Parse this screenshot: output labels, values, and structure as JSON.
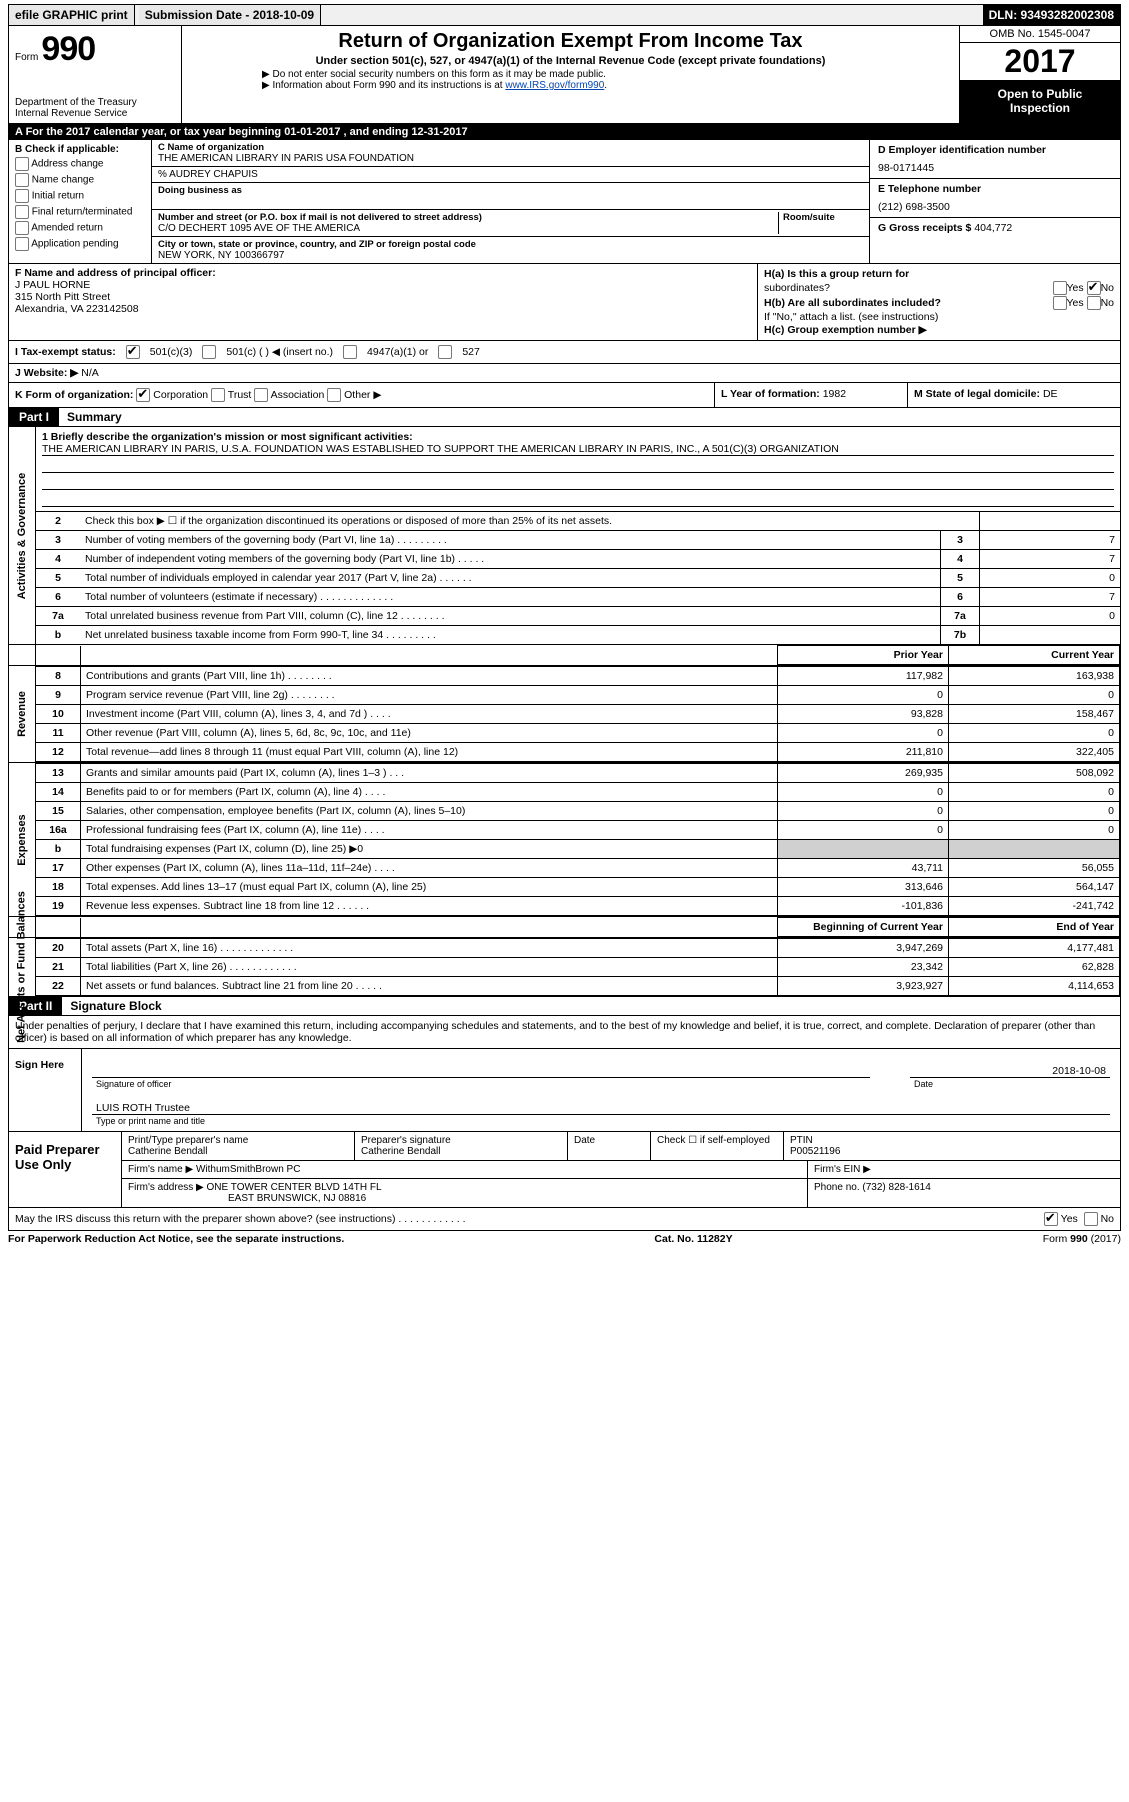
{
  "topbar": {
    "efile": "efile GRAPHIC print",
    "submission_label": "Submission Date - 2018-10-09",
    "dln_label": "DLN: 93493282002308"
  },
  "header": {
    "form_word": "Form",
    "form_number": "990",
    "dept1": "Department of the Treasury",
    "dept2": "Internal Revenue Service",
    "title": "Return of Organization Exempt From Income Tax",
    "subtitle": "Under section 501(c), 527, or 4947(a)(1) of the Internal Revenue Code (except private foundations)",
    "note1": "▶ Do not enter social security numbers on this form as it may be made public.",
    "note2_pre": "▶ Information about Form 990 and its instructions is at ",
    "note2_link": "www.IRS.gov/form990",
    "omb": "OMB No. 1545-0047",
    "year": "2017",
    "open1": "Open to Public",
    "open2": "Inspection"
  },
  "rowA": "A  For the 2017 calendar year, or tax year beginning 01-01-2017   , and ending 12-31-2017",
  "B": {
    "label": "B Check if applicable:",
    "items": [
      "Address change",
      "Name change",
      "Initial return",
      "Final return/terminated",
      "Amended return",
      "Application pending"
    ]
  },
  "C": {
    "name_label": "C Name of organization",
    "name": "THE AMERICAN LIBRARY IN PARIS USA FOUNDATION",
    "care_of": "% AUDREY CHAPUIS",
    "dba_label": "Doing business as",
    "addr_label": "Number and street (or P.O. box if mail is not delivered to street address)",
    "room_label": "Room/suite",
    "addr": "C/O DECHERT 1095 AVE OF THE AMERICA",
    "city_label": "City or town, state or province, country, and ZIP or foreign postal code",
    "city": "NEW YORK, NY  100366797"
  },
  "D": {
    "label": "D Employer identification number",
    "value": "98-0171445"
  },
  "E": {
    "label": "E Telephone number",
    "value": "(212) 698-3500"
  },
  "G": {
    "label": "G Gross receipts $",
    "value": "404,772"
  },
  "F": {
    "label": "F  Name and address of principal officer:",
    "name": "J PAUL HORNE",
    "street": "315 North Pitt Street",
    "city": "Alexandria, VA  223142508"
  },
  "H": {
    "a_label": "H(a)  Is this a group return for",
    "a_label2": "subordinates?",
    "b_label": "H(b)  Are all subordinates included?",
    "b_note": "If \"No,\" attach a list. (see instructions)",
    "c_label": "H(c)  Group exemption number ▶",
    "yes": "Yes",
    "no": "No"
  },
  "I": {
    "label": "I  Tax-exempt status:",
    "o1": "501(c)(3)",
    "o2": "501(c) (   ) ◀ (insert no.)",
    "o3": "4947(a)(1) or",
    "o4": "527"
  },
  "J": {
    "label": "J  Website: ▶",
    "value": "N/A"
  },
  "K": {
    "label": "K Form of organization:",
    "corp": "Corporation",
    "trust": "Trust",
    "assoc": "Association",
    "other": "Other ▶"
  },
  "L": {
    "label": "L Year of formation:",
    "value": "1982"
  },
  "M": {
    "label": "M State of legal domicile:",
    "value": "DE"
  },
  "partI": {
    "tag": "Part I",
    "title": "Summary"
  },
  "mission": {
    "lead": "1  Briefly describe the organization's mission or most significant activities:",
    "text": "THE AMERICAN LIBRARY IN PARIS, U.S.A. FOUNDATION WAS ESTABLISHED TO SUPPORT THE AMERICAN LIBRARY IN PARIS, INC., A 501(C)(3) ORGANIZATION"
  },
  "gov_side": "Activities & Governance",
  "sum_lines": [
    {
      "n": "2",
      "t": "Check this box ▶ ☐  if the organization discontinued its operations or disposed of more than 25% of its net assets.",
      "box": "",
      "v": ""
    },
    {
      "n": "3",
      "t": "Number of voting members of the governing body (Part VI, line 1a)  .   .   .   .   .   .   .   .   .",
      "box": "3",
      "v": "7"
    },
    {
      "n": "4",
      "t": "Number of independent voting members of the governing body (Part VI, line 1b)   .   .   .   .   .",
      "box": "4",
      "v": "7"
    },
    {
      "n": "5",
      "t": "Total number of individuals employed in calendar year 2017 (Part V, line 2a)   .   .   .   .   .   .",
      "box": "5",
      "v": "0"
    },
    {
      "n": "6",
      "t": "Total number of volunteers (estimate if necessary)   .   .   .   .   .   .   .   .   .   .   .   .   .",
      "box": "6",
      "v": "7"
    },
    {
      "n": "7a",
      "t": "Total unrelated business revenue from Part VIII, column (C), line 12   .   .   .   .   .   .   .   .",
      "box": "7a",
      "v": "0"
    },
    {
      "n": "b",
      "t": "Net unrelated business taxable income from Form 990-T, line 34   .   .   .   .   .   .   .   .   .",
      "box": "7b",
      "v": ""
    }
  ],
  "fin_header": {
    "prior": "Prior Year",
    "current": "Current Year",
    "begin": "Beginning of Current Year",
    "end": "End of Year"
  },
  "revenue_side": "Revenue",
  "revenue": [
    {
      "n": "8",
      "t": "Contributions and grants (Part VIII, line 1h)   .   .   .   .   .   .   .   .",
      "p": "117,982",
      "c": "163,938"
    },
    {
      "n": "9",
      "t": "Program service revenue (Part VIII, line 2g)   .   .   .   .   .   .   .   .",
      "p": "0",
      "c": "0"
    },
    {
      "n": "10",
      "t": "Investment income (Part VIII, column (A), lines 3, 4, and 7d )   .   .   .   .",
      "p": "93,828",
      "c": "158,467"
    },
    {
      "n": "11",
      "t": "Other revenue (Part VIII, column (A), lines 5, 6d, 8c, 9c, 10c, and 11e)",
      "p": "0",
      "c": "0"
    },
    {
      "n": "12",
      "t": "Total revenue—add lines 8 through 11 (must equal Part VIII, column (A), line 12)",
      "p": "211,810",
      "c": "322,405"
    }
  ],
  "expenses_side": "Expenses",
  "expenses": [
    {
      "n": "13",
      "t": "Grants and similar amounts paid (Part IX, column (A), lines 1–3 )   .   .   .",
      "p": "269,935",
      "c": "508,092"
    },
    {
      "n": "14",
      "t": "Benefits paid to or for members (Part IX, column (A), line 4)   .   .   .   .",
      "p": "0",
      "c": "0"
    },
    {
      "n": "15",
      "t": "Salaries, other compensation, employee benefits (Part IX, column (A), lines 5–10)",
      "p": "0",
      "c": "0"
    },
    {
      "n": "16a",
      "t": "Professional fundraising fees (Part IX, column (A), line 11e)   .   .   .   .",
      "p": "0",
      "c": "0"
    },
    {
      "n": "b",
      "t": "Total fundraising expenses (Part IX, column (D), line 25) ▶0",
      "p": "shade",
      "c": "shade"
    },
    {
      "n": "17",
      "t": "Other expenses (Part IX, column (A), lines 11a–11d, 11f–24e)   .   .   .   .",
      "p": "43,711",
      "c": "56,055"
    },
    {
      "n": "18",
      "t": "Total expenses. Add lines 13–17 (must equal Part IX, column (A), line 25)",
      "p": "313,646",
      "c": "564,147"
    },
    {
      "n": "19",
      "t": "Revenue less expenses. Subtract line 18 from line 12   .   .   .   .   .   .",
      "p": "-101,836",
      "c": "-241,742"
    }
  ],
  "netassets_side": "Net Assets or\nFund Balances",
  "netassets": [
    {
      "n": "20",
      "t": "Total assets (Part X, line 16)   .   .   .   .   .   .   .   .   .   .   .   .   .",
      "p": "3,947,269",
      "c": "4,177,481"
    },
    {
      "n": "21",
      "t": "Total liabilities (Part X, line 26)   .   .   .   .   .   .   .   .   .   .   .   .",
      "p": "23,342",
      "c": "62,828"
    },
    {
      "n": "22",
      "t": "Net assets or fund balances. Subtract line 21 from line 20   .   .   .   .   .",
      "p": "3,923,927",
      "c": "4,114,653"
    }
  ],
  "partII": {
    "tag": "Part II",
    "title": "Signature Block"
  },
  "declare": "Under penalties of perjury, I declare that I have examined this return, including accompanying schedules and statements, and to the best of my knowledge and belief, it is true, correct, and complete. Declaration of preparer (other than officer) is based on all information of which preparer has any knowledge.",
  "sign": {
    "side": "Sign Here",
    "sig_label": "Signature of officer",
    "date_label": "Date",
    "date": "2018-10-08",
    "name": "LUIS ROTH Trustee",
    "type_label": "Type or print name and title"
  },
  "preparer": {
    "side": "Paid Preparer Use Only",
    "h1": "Print/Type preparer's name",
    "v1": "Catherine Bendall",
    "h2": "Preparer's signature",
    "v2": "Catherine Bendall",
    "h3": "Date",
    "h4": "Check ☐ if self-employed",
    "h5": "PTIN",
    "v5": "P00521196",
    "firm_name_l": "Firm's name    ▶",
    "firm_name": "WithumSmithBrown PC",
    "firm_ein_l": "Firm's EIN ▶",
    "firm_addr_l": "Firm's address ▶",
    "firm_addr1": "ONE TOWER CENTER BLVD 14TH FL",
    "firm_addr2": "EAST BRUNSWICK, NJ  08816",
    "phone_l": "Phone no.",
    "phone": "(732) 828-1614"
  },
  "discuss": {
    "text": "May the IRS discuss this return with the preparer shown above? (see instructions)   .   .   .   .   .   .   .   .   .   .   .   .",
    "yes": "Yes",
    "no": "No"
  },
  "footer": {
    "left": "For Paperwork Reduction Act Notice, see the separate instructions.",
    "mid": "Cat. No. 11282Y",
    "right": "Form 990 (2017)"
  }
}
